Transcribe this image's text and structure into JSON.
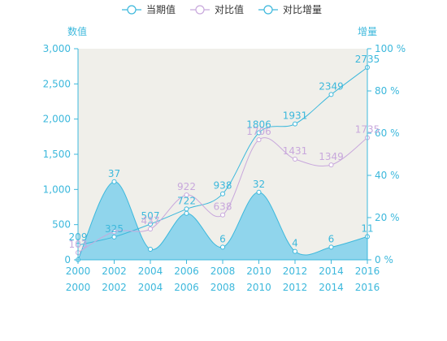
{
  "chart_data": {
    "type": "line",
    "legend": {
      "placement": "top-center",
      "items": [
        {
          "name": "当期值",
          "color": "#3cb8dc"
        },
        {
          "name": "对比值",
          "color": "#c8a8dc"
        },
        {
          "name": "对比增量",
          "color": "#3cb8dc"
        }
      ]
    },
    "y_left": {
      "label": "数值",
      "ticks": [
        "0",
        "500",
        "1,000",
        "1,500",
        "2,000",
        "2,500",
        "3,000"
      ],
      "range": [
        0,
        3000
      ]
    },
    "y_right": {
      "label": "增量",
      "ticks": [
        "0 %",
        "20 %",
        "40 %",
        "60 %",
        "80 %",
        "100 %"
      ],
      "range": [
        0,
        100
      ]
    },
    "x": {
      "ticks": [
        "2000",
        "2002",
        "2004",
        "2006",
        "2008",
        "2010",
        "2012",
        "2014",
        "2016"
      ],
      "range": [
        2000,
        2016
      ]
    },
    "grid": false,
    "plot_background": "#f0efea",
    "series": [
      {
        "name": "当期值",
        "axis": "left",
        "color": "#3cb8dc",
        "points": [
          {
            "x": 2000,
            "y": 209,
            "label": "209"
          },
          {
            "x": 2002,
            "y": 325,
            "label": "325"
          },
          {
            "x": 2004,
            "y": 507,
            "label": "507"
          },
          {
            "x": 2006,
            "y": 722,
            "label": "722"
          },
          {
            "x": 2008,
            "y": 938,
            "label": "938"
          },
          {
            "x": 2010,
            "y": 1806,
            "label": "1806"
          },
          {
            "x": 2012,
            "y": 1931,
            "label": "1931"
          },
          {
            "x": 2014,
            "y": 2349,
            "label": "2349"
          },
          {
            "x": 2016,
            "y": 2735,
            "label": "2735"
          }
        ]
      },
      {
        "name": "对比值",
        "axis": "left",
        "color": "#c8a8dc",
        "points": [
          {
            "x": 2000,
            "y": 103,
            "label": "103"
          },
          {
            "x": 2002,
            "y": 400,
            "label": ""
          },
          {
            "x": 2004,
            "y": 437,
            "label": "437"
          },
          {
            "x": 2006,
            "y": 922,
            "label": "922"
          },
          {
            "x": 2008,
            "y": 638,
            "label": "638"
          },
          {
            "x": 2010,
            "y": 1706,
            "label": "1706"
          },
          {
            "x": 2012,
            "y": 1431,
            "label": "1431"
          },
          {
            "x": 2014,
            "y": 1349,
            "label": "1349"
          },
          {
            "x": 2016,
            "y": 1735,
            "label": "1735"
          }
        ]
      },
      {
        "name": "对比增量",
        "axis": "right",
        "type": "area",
        "color": "#3cb8dc",
        "fill": "#7fd0ec",
        "points": [
          {
            "x": 2000,
            "y": 0,
            "label": ""
          },
          {
            "x": 2002,
            "y": 37,
            "label": "37"
          },
          {
            "x": 2004,
            "y": 5,
            "label": ""
          },
          {
            "x": 2006,
            "y": 22,
            "label": ""
          },
          {
            "x": 2008,
            "y": 6,
            "label": "6"
          },
          {
            "x": 2010,
            "y": 32,
            "label": "32"
          },
          {
            "x": 2012,
            "y": 4,
            "label": "4"
          },
          {
            "x": 2014,
            "y": 6,
            "label": "6"
          },
          {
            "x": 2016,
            "y": 11,
            "label": "11"
          }
        ]
      }
    ]
  }
}
